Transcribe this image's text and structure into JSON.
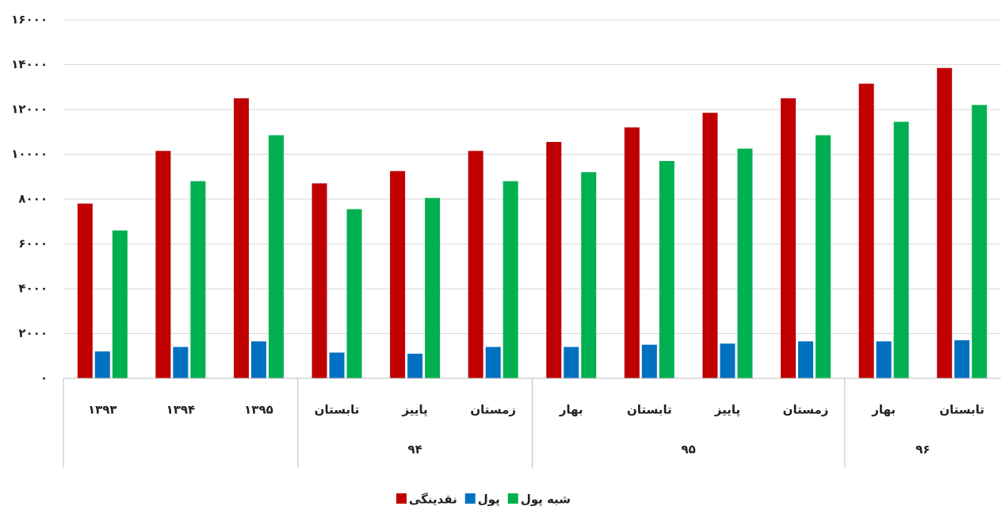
{
  "chart_data": {
    "type": "bar",
    "categories": [
      "۱۳۹۳",
      "۱۳۹۴",
      "۱۳۹۵",
      "تابستان",
      "پاییز",
      "زمستان",
      "بهار",
      "تابستان",
      "پاییز",
      "زمستان",
      "بهار",
      "تابستان"
    ],
    "groups": [
      {
        "label": null,
        "size": 3
      },
      {
        "label": "۹۴",
        "size": 3
      },
      {
        "label": "۹۵",
        "size": 4
      },
      {
        "label": "۹۶",
        "size": 2
      }
    ],
    "series": [
      {
        "name": "نقدینگی",
        "color": "#c00000",
        "values": [
          7800,
          10150,
          12500,
          8700,
          9250,
          10150,
          10550,
          11200,
          11850,
          12500,
          13150,
          13850
        ]
      },
      {
        "name": "پول",
        "color": "#0070c0",
        "values": [
          1200,
          1400,
          1650,
          1150,
          1100,
          1400,
          1400,
          1500,
          1550,
          1650,
          1650,
          1700
        ]
      },
      {
        "name": "شبه پول",
        "color": "#00b050",
        "values": [
          6600,
          8800,
          10850,
          7550,
          8050,
          8800,
          9200,
          9700,
          10250,
          10850,
          11450,
          12200
        ]
      }
    ],
    "ylim": [
      0,
      16000
    ],
    "yticks": [
      {
        "value": 0,
        "label": "۰"
      },
      {
        "value": 2000,
        "label": "۲۰۰۰"
      },
      {
        "value": 4000,
        "label": "۴۰۰۰"
      },
      {
        "value": 6000,
        "label": "۶۰۰۰"
      },
      {
        "value": 8000,
        "label": "۸۰۰۰"
      },
      {
        "value": 10000,
        "label": "۱۰۰۰۰"
      },
      {
        "value": 12000,
        "label": "۱۲۰۰۰"
      },
      {
        "value": 14000,
        "label": "۱۴۰۰۰"
      },
      {
        "value": 16000,
        "label": "۱۶۰۰۰"
      }
    ],
    "grid": true,
    "legend": "bottom"
  }
}
